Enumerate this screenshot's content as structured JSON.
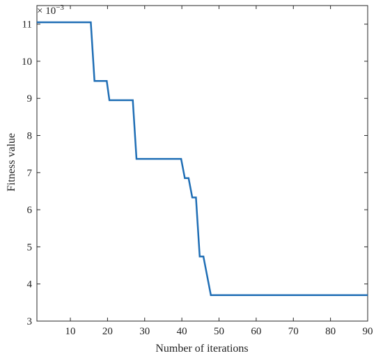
{
  "chart_data": {
    "type": "line",
    "xlabel": "Number of iterations",
    "ylabel": "Fitness value",
    "xlim": [
      1,
      90
    ],
    "ylim": [
      3,
      11.5
    ],
    "x_ticks": [
      10,
      20,
      30,
      40,
      50,
      60,
      70,
      80,
      90
    ],
    "y_ticks": [
      3,
      4,
      5,
      6,
      7,
      8,
      9,
      10,
      11
    ],
    "y_multiplier": {
      "base": "× 10",
      "exponent": "−3"
    },
    "grid": false,
    "legend": "none",
    "line_color": "#1f6eb5",
    "series": [
      {
        "x": [
          1,
          15.5,
          16.5,
          19.8,
          20.5,
          26.8,
          27.8,
          39.8,
          40.8,
          41.8,
          42.8,
          43.8,
          44.8,
          45.8,
          47.8,
          90
        ],
        "y": [
          11.05,
          11.05,
          9.47,
          9.47,
          8.95,
          8.95,
          7.37,
          7.37,
          6.85,
          6.85,
          6.33,
          6.33,
          4.74,
          4.74,
          3.7,
          3.7
        ]
      }
    ]
  }
}
